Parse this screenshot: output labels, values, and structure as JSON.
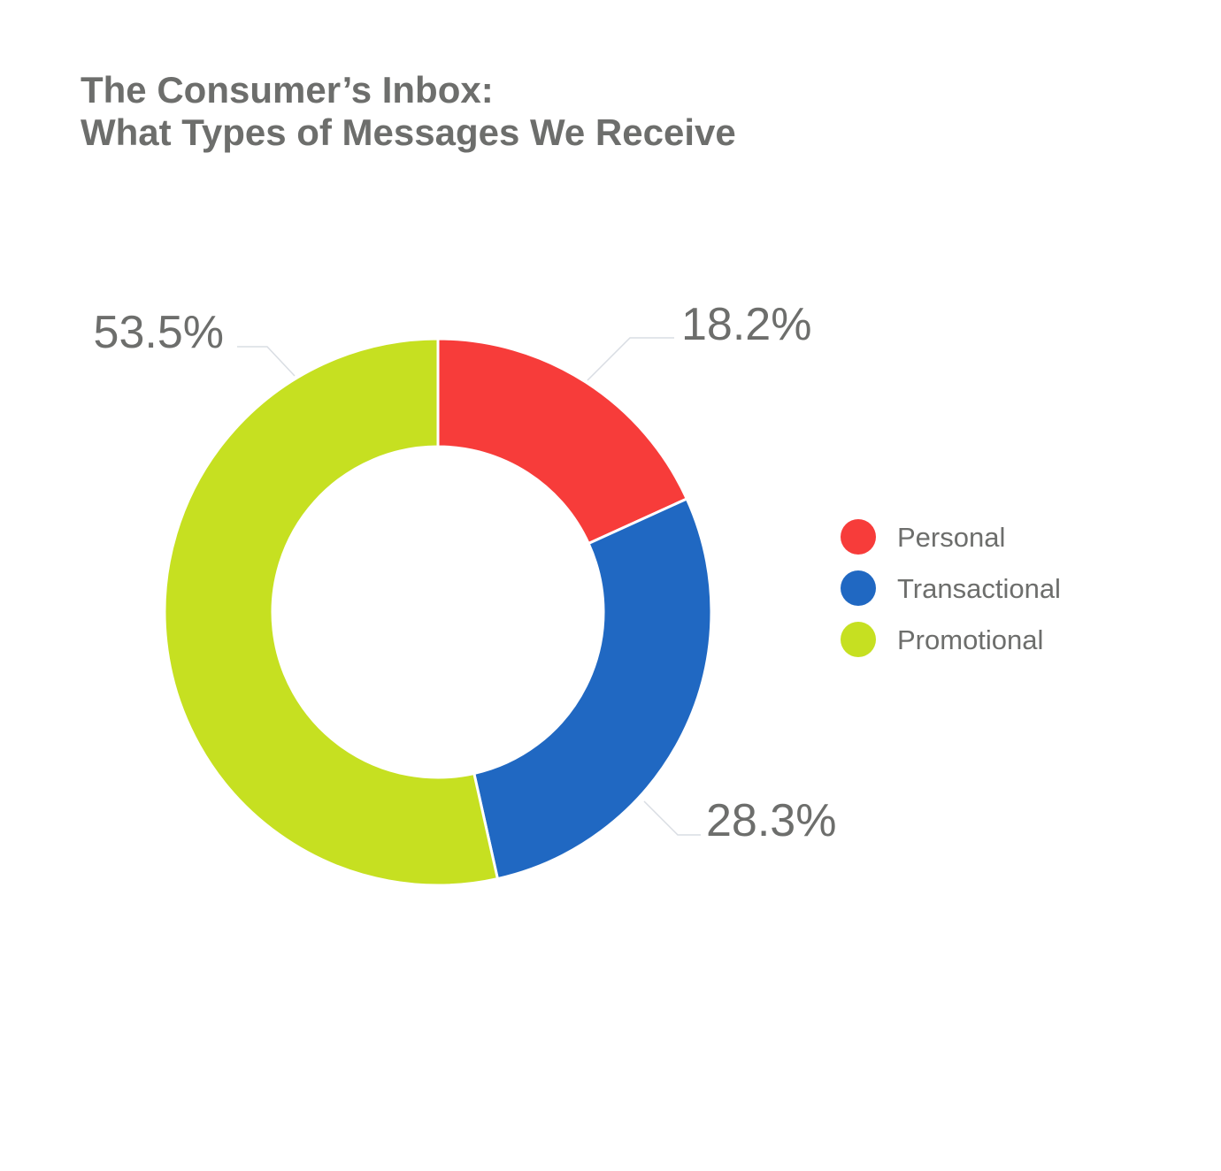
{
  "chart_data": {
    "type": "pie",
    "variant": "donut",
    "title_lines": [
      "The Consumer’s Inbox:",
      "What Types of Messages We Receive"
    ],
    "slices": [
      {
        "label": "Personal",
        "value": 18.2,
        "display": "18.2%",
        "color": "#f73c3a"
      },
      {
        "label": "Transactional",
        "value": 28.3,
        "display": "28.3%",
        "color": "#2068c2"
      },
      {
        "label": "Promotional",
        "value": 53.5,
        "display": "53.5%",
        "color": "#c6e021"
      }
    ],
    "legend_placement": "right"
  }
}
